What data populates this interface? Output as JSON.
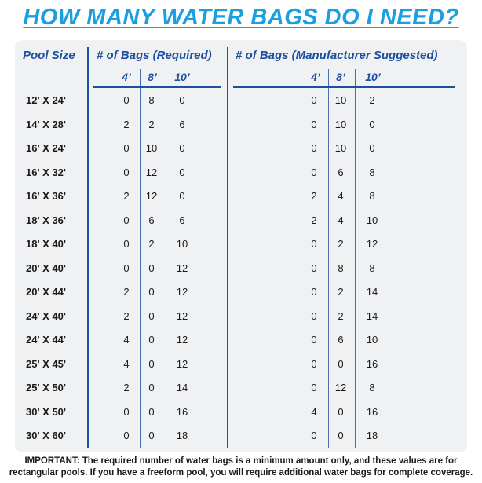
{
  "title": "HOW MANY WATER BAGS DO I NEED?",
  "headers": {
    "pool_size": "Pool Size",
    "required": "# of Bags (Required)",
    "suggested": "# of Bags (Manufacturer Suggested)",
    "sub": [
      "4’",
      "8’",
      "10’"
    ]
  },
  "rows": [
    {
      "size": "12' X 24'",
      "req": [
        "0",
        "8",
        "0"
      ],
      "sug": [
        "0",
        "10",
        "2"
      ]
    },
    {
      "size": "14' X 28'",
      "req": [
        "2",
        "2",
        "6"
      ],
      "sug": [
        "0",
        "10",
        "0"
      ]
    },
    {
      "size": "16' X 24'",
      "req": [
        "0",
        "10",
        "0"
      ],
      "sug": [
        "0",
        "10",
        "0"
      ]
    },
    {
      "size": "16' X 32'",
      "req": [
        "0",
        "12",
        "0"
      ],
      "sug": [
        "0",
        "6",
        "8"
      ]
    },
    {
      "size": "16' X 36'",
      "req": [
        "2",
        "12",
        "0"
      ],
      "sug": [
        "2",
        "4",
        "8"
      ]
    },
    {
      "size": "18' X 36'",
      "req": [
        "0",
        "6",
        "6"
      ],
      "sug": [
        "2",
        "4",
        "10"
      ]
    },
    {
      "size": "18' X 40'",
      "req": [
        "0",
        "2",
        "10"
      ],
      "sug": [
        "0",
        "2",
        "12"
      ]
    },
    {
      "size": "20' X 40'",
      "req": [
        "0",
        "0",
        "12"
      ],
      "sug": [
        "0",
        "8",
        "8"
      ]
    },
    {
      "size": "20' X 44'",
      "req": [
        "2",
        "0",
        "12"
      ],
      "sug": [
        "0",
        "2",
        "14"
      ]
    },
    {
      "size": "24' X 40'",
      "req": [
        "2",
        "0",
        "12"
      ],
      "sug": [
        "0",
        "2",
        "14"
      ]
    },
    {
      "size": "24' X 44'",
      "req": [
        "4",
        "0",
        "12"
      ],
      "sug": [
        "0",
        "6",
        "10"
      ]
    },
    {
      "size": "25' X 45'",
      "req": [
        "4",
        "0",
        "12"
      ],
      "sug": [
        "0",
        "0",
        "16"
      ]
    },
    {
      "size": "25' X 50'",
      "req": [
        "2",
        "0",
        "14"
      ],
      "sug": [
        "0",
        "12",
        "8"
      ]
    },
    {
      "size": "30' X 50'",
      "req": [
        "0",
        "0",
        "16"
      ],
      "sug": [
        "4",
        "0",
        "16"
      ]
    },
    {
      "size": "30' X 60'",
      "req": [
        "0",
        "0",
        "18"
      ],
      "sug": [
        "0",
        "0",
        "18"
      ]
    }
  ],
  "note_line1": "IMPORTANT: The required number of water bags is a minimum amount only, and these values are for",
  "note_line2": "rectangular pools. If you have a freeform pool, you will require additional water bags for complete coverage."
}
